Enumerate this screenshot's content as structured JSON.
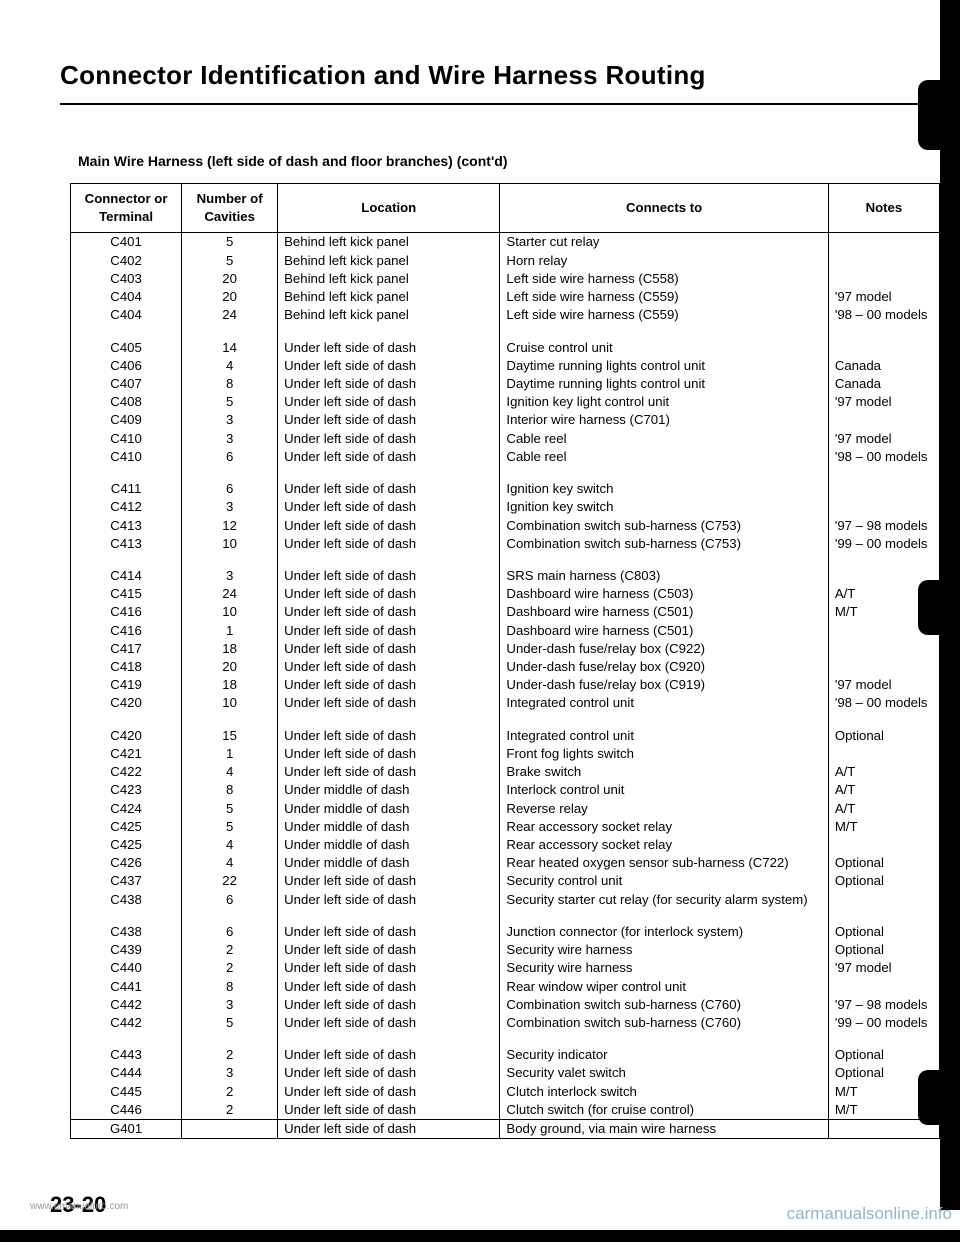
{
  "title": "Connector Identification and Wire Harness Routing",
  "subtitle": "Main Wire Harness (left side of dash and floor branches) (cont'd)",
  "headers": {
    "conn": "Connector or Terminal",
    "cav": "Number of Cavities",
    "loc": "Location",
    "to": "Connects to",
    "notes": "Notes"
  },
  "rows": [
    {
      "c": "C401",
      "n": "5",
      "l": "Behind left kick panel",
      "t": "Starter cut relay",
      "x": ""
    },
    {
      "c": "C402",
      "n": "5",
      "l": "Behind left kick panel",
      "t": "Horn relay",
      "x": ""
    },
    {
      "c": "C403",
      "n": "20",
      "l": "Behind left kick panel",
      "t": "Left side wire harness (C558)",
      "x": ""
    },
    {
      "c": "C404",
      "n": "20",
      "l": "Behind left kick panel",
      "t": "Left side wire harness (C559)",
      "x": "'97 model"
    },
    {
      "c": "C404",
      "n": "24",
      "l": "Behind left kick panel",
      "t": "Left side wire harness (C559)",
      "x": "'98 – 00 models"
    },
    {
      "spacer": true
    },
    {
      "c": "C405",
      "n": "14",
      "l": "Under left side of dash",
      "t": "Cruise control unit",
      "x": ""
    },
    {
      "c": "C406",
      "n": "4",
      "l": "Under left side of dash",
      "t": "Daytime running lights control unit",
      "x": "Canada"
    },
    {
      "c": "C407",
      "n": "8",
      "l": "Under left side of dash",
      "t": "Daytime running lights control unit",
      "x": "Canada"
    },
    {
      "c": "C408",
      "n": "5",
      "l": "Under left side of dash",
      "t": "Ignition key light control unit",
      "x": "'97 model"
    },
    {
      "c": "C409",
      "n": "3",
      "l": "Under left side of dash",
      "t": "Interior wire harness (C701)",
      "x": ""
    },
    {
      "c": "C410",
      "n": "3",
      "l": "Under left side of dash",
      "t": "Cable reel",
      "x": "'97 model"
    },
    {
      "c": "C410",
      "n": "6",
      "l": "Under left side of dash",
      "t": "Cable reel",
      "x": "'98 – 00 models"
    },
    {
      "spacer": true
    },
    {
      "c": "C411",
      "n": "6",
      "l": "Under left side of dash",
      "t": "Ignition key switch",
      "x": ""
    },
    {
      "c": "C412",
      "n": "3",
      "l": "Under left side of dash",
      "t": "Ignition key switch",
      "x": ""
    },
    {
      "c": "C413",
      "n": "12",
      "l": "Under left side of dash",
      "t": "Combination switch sub-harness (C753)",
      "x": "'97 – 98 models"
    },
    {
      "c": "C413",
      "n": "10",
      "l": "Under left side of dash",
      "t": "Combination switch sub-harness (C753)",
      "x": "'99 – 00 models"
    },
    {
      "spacer": true
    },
    {
      "c": "C414",
      "n": "3",
      "l": "Under left side of dash",
      "t": "SRS main harness (C803)",
      "x": ""
    },
    {
      "c": "C415",
      "n": "24",
      "l": "Under left side of dash",
      "t": "Dashboard wire harness (C503)",
      "x": "A/T"
    },
    {
      "c": "C416",
      "n": "10",
      "l": "Under left side of dash",
      "t": "Dashboard wire harness (C501)",
      "x": "M/T"
    },
    {
      "c": "C416",
      "n": "1",
      "l": "Under left side of dash",
      "t": "Dashboard wire harness (C501)",
      "x": ""
    },
    {
      "c": "C417",
      "n": "18",
      "l": "Under left side of dash",
      "t": "Under-dash fuse/relay box (C922)",
      "x": ""
    },
    {
      "c": "C418",
      "n": "20",
      "l": "Under left side of dash",
      "t": "Under-dash fuse/relay box (C920)",
      "x": ""
    },
    {
      "c": "C419",
      "n": "18",
      "l": "Under left side of dash",
      "t": "Under-dash fuse/relay box (C919)",
      "x": "'97 model"
    },
    {
      "c": "C420",
      "n": "10",
      "l": "Under left side of dash",
      "t": "Integrated control unit",
      "x": "'98 – 00 models"
    },
    {
      "spacer": true
    },
    {
      "c": "C420",
      "n": "15",
      "l": "Under left side of dash",
      "t": "Integrated control unit",
      "x": "Optional"
    },
    {
      "c": "C421",
      "n": "1",
      "l": "Under left side of dash",
      "t": "Front fog lights switch",
      "x": ""
    },
    {
      "c": "C422",
      "n": "4",
      "l": "Under left side of dash",
      "t": "Brake switch",
      "x": "A/T"
    },
    {
      "c": "C423",
      "n": "8",
      "l": "Under middle of dash",
      "t": "Interlock control unit",
      "x": "A/T"
    },
    {
      "c": "C424",
      "n": "5",
      "l": "Under middle of dash",
      "t": "Reverse relay",
      "x": "A/T"
    },
    {
      "c": "C425",
      "n": "5",
      "l": "Under middle of dash",
      "t": "Rear accessory socket relay",
      "x": "M/T"
    },
    {
      "c": "C425",
      "n": "4",
      "l": "Under middle of dash",
      "t": "Rear accessory socket relay",
      "x": ""
    },
    {
      "c": "C426",
      "n": "4",
      "l": "Under middle of dash",
      "t": "Rear heated oxygen sensor sub-harness (C722)",
      "x": "Optional"
    },
    {
      "c": "C437",
      "n": "22",
      "l": "Under left side of dash",
      "t": "Security control unit",
      "x": "Optional"
    },
    {
      "c": "C438",
      "n": "6",
      "l": "Under left side of dash",
      "t": "Security starter cut relay (for security alarm system)",
      "x": ""
    },
    {
      "spacer": true
    },
    {
      "c": "C438",
      "n": "6",
      "l": "Under left side of dash",
      "t": "Junction connector (for interlock system)",
      "x": "Optional"
    },
    {
      "c": "C439",
      "n": "2",
      "l": "Under left side of dash",
      "t": "Security wire harness",
      "x": "Optional"
    },
    {
      "c": "C440",
      "n": "2",
      "l": "Under left side of dash",
      "t": "Security wire harness",
      "x": "'97 model"
    },
    {
      "c": "C441",
      "n": "8",
      "l": "Under left side of dash",
      "t": "Rear window wiper control unit",
      "x": ""
    },
    {
      "c": "C442",
      "n": "3",
      "l": "Under left side of dash",
      "t": "Combination switch sub-harness (C760)",
      "x": "'97 – 98 models"
    },
    {
      "c": "C442",
      "n": "5",
      "l": "Under left side of dash",
      "t": "Combination switch sub-harness (C760)",
      "x": "'99 – 00 models"
    },
    {
      "spacer": true
    },
    {
      "c": "C443",
      "n": "2",
      "l": "Under left side of dash",
      "t": "Security indicator",
      "x": "Optional"
    },
    {
      "c": "C444",
      "n": "3",
      "l": "Under left side of dash",
      "t": "Security valet switch",
      "x": "Optional"
    },
    {
      "c": "C445",
      "n": "2",
      "l": "Under left side of dash",
      "t": "Clutch interlock switch",
      "x": "M/T"
    },
    {
      "c": "C446",
      "n": "2",
      "l": "Under left side of dash",
      "t": "Clutch switch (for cruise control)",
      "x": "M/T"
    }
  ],
  "footerRow": {
    "c": "G401",
    "n": "",
    "l": "Under left side of dash",
    "t": "Body ground, via main wire harness",
    "x": ""
  },
  "pageNumber": "23-20",
  "watermark": "carmanualsonline.info",
  "urlLeft": "www.emanualpro.com"
}
